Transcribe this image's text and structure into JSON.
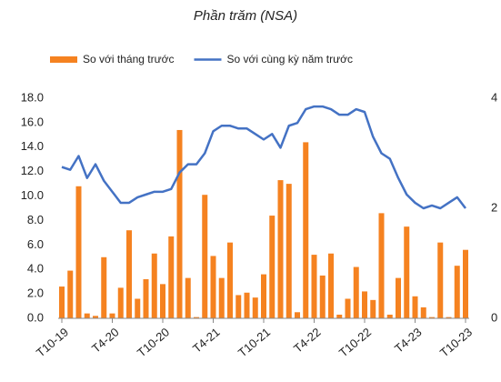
{
  "chart_data": {
    "type": "bar_line",
    "title": "Phần trăm (NSA)",
    "categories": [
      "T10-19",
      null,
      null,
      null,
      null,
      null,
      "T4-20",
      null,
      null,
      null,
      null,
      null,
      "T10-20",
      null,
      null,
      null,
      null,
      null,
      "T4-21",
      null,
      null,
      null,
      null,
      null,
      "T10-21",
      null,
      null,
      null,
      null,
      null,
      "T4-22",
      null,
      null,
      null,
      null,
      null,
      "T10-22",
      null,
      null,
      null,
      null,
      null,
      "T4-23",
      null,
      null,
      null,
      null,
      null,
      "T10-23"
    ],
    "series": [
      {
        "name": "So với tháng trước",
        "color": "#f58220",
        "type": "bar",
        "values": [
          2.6,
          3.9,
          10.8,
          0.4,
          0.2,
          5.0,
          0.4,
          2.5,
          7.2,
          1.6,
          3.2,
          5.3,
          2.8,
          6.7,
          15.4,
          3.3,
          0.1,
          10.1,
          5.1,
          3.3,
          6.2,
          1.9,
          2.1,
          1.7,
          3.6,
          8.4,
          11.3,
          11.0,
          0.5,
          14.4,
          5.2,
          3.5,
          5.3,
          0.3,
          1.6,
          4.2,
          2.2,
          1.5,
          8.6,
          0.3,
          3.3,
          7.5,
          1.8,
          0.9,
          0.1,
          6.2,
          0.1,
          4.3,
          5.6
        ]
      },
      {
        "name": "So với cùng kỳ năm trước",
        "color": "#4472c4",
        "type": "line",
        "axis": "y2",
        "values": [
          2.75,
          2.7,
          2.95,
          2.55,
          2.8,
          2.5,
          2.3,
          2.1,
          2.1,
          2.2,
          2.25,
          2.3,
          2.3,
          2.35,
          2.65,
          2.8,
          2.8,
          3.0,
          3.4,
          3.5,
          3.5,
          3.45,
          3.45,
          3.35,
          3.25,
          3.35,
          3.1,
          3.5,
          3.55,
          3.8,
          3.85,
          3.85,
          3.8,
          3.7,
          3.7,
          3.8,
          3.75,
          3.3,
          3.0,
          2.9,
          2.55,
          2.25,
          2.1,
          2.0,
          2.05,
          2.0,
          2.1,
          2.2,
          2.0
        ]
      }
    ],
    "ylim": [
      0,
      18
    ],
    "yticks": [
      {
        "value": 0,
        "label": "0.0"
      },
      {
        "value": 2,
        "label": "2.0"
      },
      {
        "value": 4,
        "label": "4.0"
      },
      {
        "value": 6,
        "label": "6.0"
      },
      {
        "value": 8,
        "label": "8.0"
      },
      {
        "value": 10,
        "label": "10.0"
      },
      {
        "value": 12,
        "label": "12.0"
      },
      {
        "value": 14,
        "label": "14.0"
      },
      {
        "value": 16,
        "label": "16.0"
      },
      {
        "value": 18,
        "label": "18.0"
      }
    ],
    "y2lim": [
      0,
      4
    ],
    "y2ticks": [
      0,
      2,
      4
    ]
  }
}
